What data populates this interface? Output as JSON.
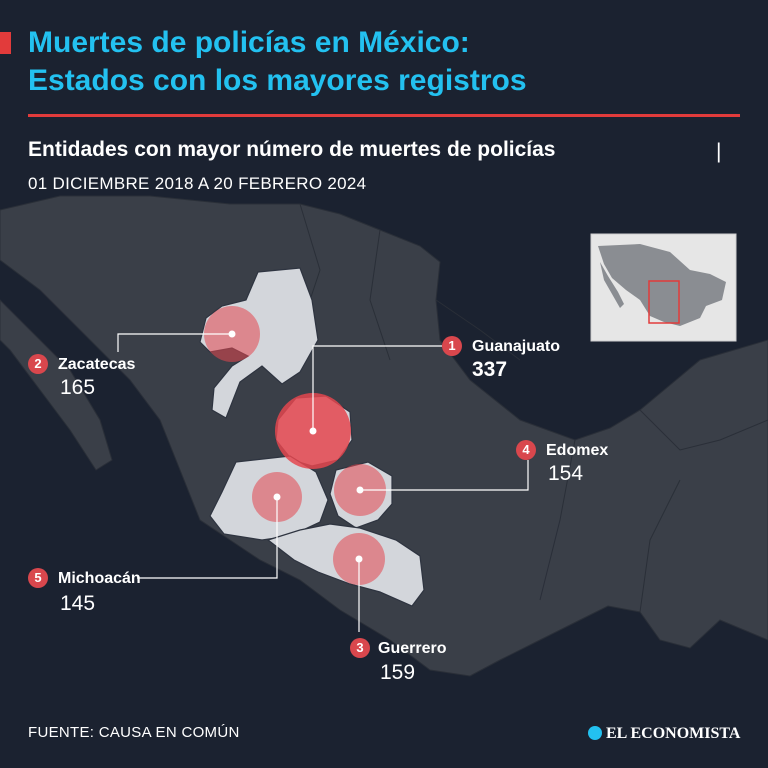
{
  "header": {
    "title_line1": "Muertes de policías en México:",
    "title_line2": "Estados con los mayores registros",
    "subtitle": "Entidades con mayor número de muertes de policías",
    "subtitle_separator": "|",
    "date_range": "01 DICIEMBRE 2018 A 20 FEBRERO 2024"
  },
  "states": [
    {
      "rank": "1",
      "name": "Guanajuato",
      "value": "337"
    },
    {
      "rank": "2",
      "name": "Zacatecas",
      "value": "165"
    },
    {
      "rank": "3",
      "name": "Guerrero",
      "value": "159"
    },
    {
      "rank": "4",
      "name": "Edomex",
      "value": "154"
    },
    {
      "rank": "5",
      "name": "Michoacán",
      "value": "145"
    }
  ],
  "footer": {
    "source": "FUENTE: CAUSA EN COMÚN",
    "brand": "EL ECONOMISTA"
  },
  "colors": {
    "background": "#1b2230",
    "title": "#23c1f0",
    "accent": "#e23b3b",
    "highlight_states": "#d3d6db",
    "bubble": "#e4474f",
    "context_land": "#3a3f48"
  }
}
